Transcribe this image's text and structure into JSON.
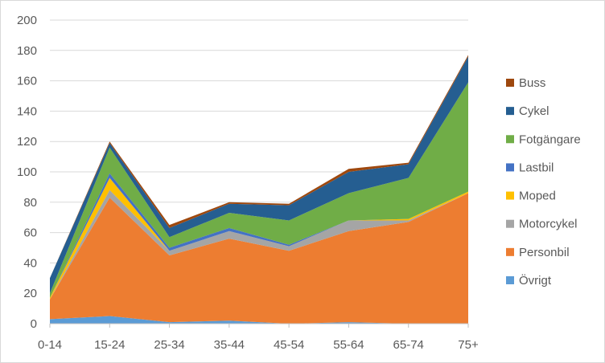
{
  "chart_data": {
    "type": "area",
    "stacked": true,
    "title": "",
    "xlabel": "",
    "ylabel": "",
    "categories": [
      "0-14",
      "15-24",
      "25-34",
      "35-44",
      "45-54",
      "55-64",
      "65-74",
      "75+"
    ],
    "ylim": [
      0,
      200
    ],
    "yticks": [
      0,
      20,
      40,
      60,
      80,
      100,
      120,
      140,
      160,
      180,
      200
    ],
    "grid": true,
    "legend_position": "right",
    "series": [
      {
        "name": "Övrigt",
        "color": "#5b9bd5",
        "values": [
          3,
          5,
          1,
          2,
          0,
          1,
          0,
          0
        ]
      },
      {
        "name": "Personbil",
        "color": "#ed7d31",
        "values": [
          13,
          78,
          44,
          54,
          48,
          60,
          67,
          86
        ]
      },
      {
        "name": "Motorcykel",
        "color": "#a5a5a5",
        "values": [
          0,
          5,
          3,
          5,
          3,
          7,
          1,
          0
        ]
      },
      {
        "name": "Moped",
        "color": "#ffc000",
        "values": [
          1,
          8,
          0,
          0,
          0,
          0,
          1,
          1
        ]
      },
      {
        "name": "Lastbil",
        "color": "#4472c4",
        "values": [
          0,
          3,
          2,
          2,
          1,
          0,
          0,
          0
        ]
      },
      {
        "name": "Fotgängare",
        "color": "#70ad47",
        "values": [
          3,
          17,
          7,
          10,
          16,
          18,
          27,
          72
        ]
      },
      {
        "name": "Cykel",
        "color": "#255e91",
        "values": [
          10,
          3,
          6,
          6,
          10,
          14,
          9,
          17
        ]
      },
      {
        "name": "Buss",
        "color": "#9e480e",
        "values": [
          0,
          1,
          2,
          1,
          1,
          2,
          1,
          1
        ]
      }
    ],
    "legend_order": [
      "Buss",
      "Cykel",
      "Fotgängare",
      "Lastbil",
      "Moped",
      "Motorcykel",
      "Personbil",
      "Övrigt"
    ]
  }
}
